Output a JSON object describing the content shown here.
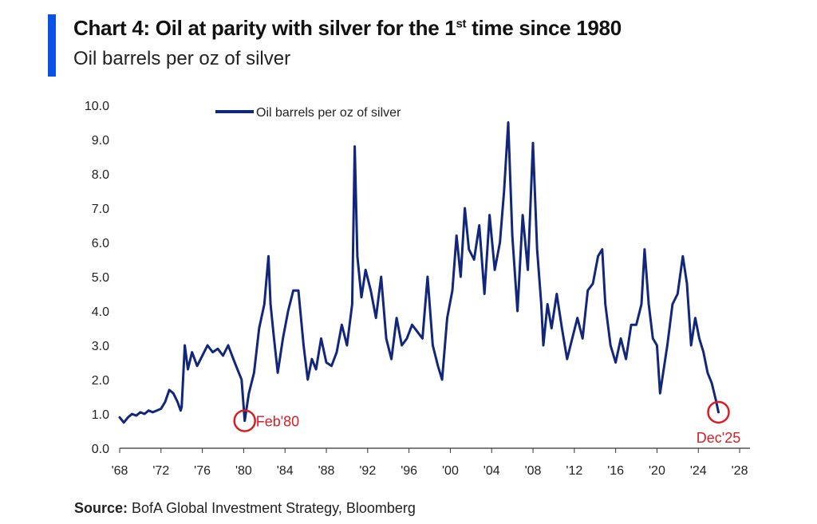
{
  "header": {
    "title_pre": "Chart 4: Oil at parity with silver for the 1",
    "title_sup": "st",
    "title_post": " time since 1980",
    "subtitle": "Oil barrels per oz of silver"
  },
  "footer": {
    "source_label": "Source:",
    "source_text": " BofA Global Investment Strategy, Bloomberg"
  },
  "chart_data": {
    "type": "line",
    "title": "Chart 4: Oil at parity with silver for the 1st time since 1980",
    "subtitle": "Oil barrels per oz of silver",
    "xlabel": "",
    "ylabel": "",
    "xlim": [
      1968,
      2029
    ],
    "ylim": [
      0,
      10
    ],
    "yticks": [
      "0.0",
      "1.0",
      "2.0",
      "3.0",
      "4.0",
      "5.0",
      "6.0",
      "7.0",
      "8.0",
      "9.0",
      "10.0"
    ],
    "xticks": [
      {
        "value": 1968,
        "label": "'68"
      },
      {
        "value": 1972,
        "label": "'72"
      },
      {
        "value": 1976,
        "label": "'76"
      },
      {
        "value": 1980,
        "label": "'80"
      },
      {
        "value": 1984,
        "label": "'84"
      },
      {
        "value": 1988,
        "label": "'88"
      },
      {
        "value": 1992,
        "label": "'92"
      },
      {
        "value": 1996,
        "label": "'96"
      },
      {
        "value": 2000,
        "label": "'00"
      },
      {
        "value": 2004,
        "label": "'04"
      },
      {
        "value": 2008,
        "label": "'08"
      },
      {
        "value": 2012,
        "label": "'12"
      },
      {
        "value": 2016,
        "label": "'16"
      },
      {
        "value": 2020,
        "label": "'20"
      },
      {
        "value": 2024,
        "label": "'24"
      },
      {
        "value": 2028,
        "label": "'28"
      }
    ],
    "legend": {
      "position": "top-left",
      "label": "Oil barrels per oz of silver"
    },
    "line_color": "#12277a",
    "annotation_color": "#d41f26",
    "annotations": [
      {
        "label": "Feb'80",
        "x": 1980.1,
        "y": 0.8
      },
      {
        "label": "Dec'25",
        "x": 2025.95,
        "y": 1.05
      }
    ],
    "series": [
      {
        "name": "Oil barrels per oz of silver",
        "x": [
          1968.0,
          1968.4,
          1968.8,
          1969.2,
          1969.6,
          1970.0,
          1970.4,
          1970.8,
          1971.2,
          1971.6,
          1972.0,
          1972.4,
          1972.8,
          1973.2,
          1973.6,
          1973.9,
          1974.0,
          1974.3,
          1974.6,
          1975.0,
          1975.5,
          1976.0,
          1976.5,
          1977.0,
          1977.5,
          1978.0,
          1978.5,
          1979.0,
          1979.4,
          1979.8,
          1980.1,
          1980.5,
          1981.0,
          1981.5,
          1982.0,
          1982.4,
          1982.6,
          1982.9,
          1983.3,
          1983.8,
          1984.3,
          1984.8,
          1985.3,
          1985.8,
          1986.2,
          1986.6,
          1987.0,
          1987.5,
          1988.0,
          1988.5,
          1989.0,
          1989.5,
          1990.0,
          1990.5,
          1990.75,
          1991.0,
          1991.4,
          1991.8,
          1992.3,
          1992.8,
          1993.3,
          1993.8,
          1994.3,
          1994.8,
          1995.3,
          1995.8,
          1996.3,
          1996.8,
          1997.3,
          1997.8,
          1998.3,
          1998.8,
          1999.2,
          1999.7,
          2000.2,
          2000.6,
          2001.0,
          2001.4,
          2001.8,
          2002.3,
          2002.8,
          2003.3,
          2003.8,
          2004.3,
          2004.8,
          2005.2,
          2005.6,
          2006.0,
          2006.5,
          2007.0,
          2007.5,
          2008.0,
          2008.4,
          2008.8,
          2009.0,
          2009.4,
          2009.8,
          2010.3,
          2010.8,
          2011.3,
          2011.8,
          2012.3,
          2012.8,
          2013.3,
          2013.8,
          2014.3,
          2014.7,
          2015.0,
          2015.5,
          2016.0,
          2016.5,
          2017.0,
          2017.5,
          2018.0,
          2018.5,
          2018.8,
          2019.2,
          2019.6,
          2020.0,
          2020.3,
          2020.6,
          2021.0,
          2021.5,
          2022.0,
          2022.5,
          2022.9,
          2023.3,
          2023.7,
          2024.1,
          2024.5,
          2024.9,
          2025.3,
          2025.7,
          2025.95
        ],
        "values": [
          0.9,
          0.75,
          0.9,
          1.0,
          0.95,
          1.05,
          1.0,
          1.1,
          1.05,
          1.1,
          1.15,
          1.35,
          1.7,
          1.6,
          1.35,
          1.1,
          1.2,
          3.0,
          2.3,
          2.8,
          2.4,
          2.7,
          3.0,
          2.8,
          2.9,
          2.7,
          3.0,
          2.6,
          2.3,
          2.0,
          0.8,
          1.6,
          2.2,
          3.5,
          4.2,
          5.6,
          4.2,
          3.3,
          2.2,
          3.2,
          4.0,
          4.6,
          4.6,
          3.0,
          2.0,
          2.6,
          2.3,
          3.2,
          2.5,
          2.4,
          2.8,
          3.6,
          3.0,
          4.2,
          8.8,
          5.6,
          4.4,
          5.2,
          4.6,
          3.8,
          5.0,
          3.2,
          2.6,
          3.8,
          3.0,
          3.2,
          3.6,
          3.4,
          3.2,
          5.0,
          3.0,
          2.4,
          2.0,
          3.8,
          4.6,
          6.2,
          5.0,
          7.0,
          5.8,
          5.5,
          6.5,
          4.5,
          6.8,
          5.2,
          6.0,
          7.5,
          9.5,
          6.2,
          4.0,
          6.8,
          5.2,
          8.9,
          5.8,
          4.2,
          3.0,
          4.2,
          3.5,
          4.5,
          3.5,
          2.6,
          3.2,
          3.8,
          3.2,
          4.6,
          4.8,
          5.6,
          5.8,
          4.2,
          3.0,
          2.5,
          3.2,
          2.6,
          3.6,
          3.6,
          4.2,
          5.8,
          4.2,
          3.2,
          3.0,
          1.6,
          2.2,
          3.0,
          4.2,
          4.5,
          5.6,
          4.8,
          3.0,
          3.8,
          3.2,
          2.8,
          2.2,
          1.9,
          1.4,
          1.05
        ]
      }
    ]
  }
}
